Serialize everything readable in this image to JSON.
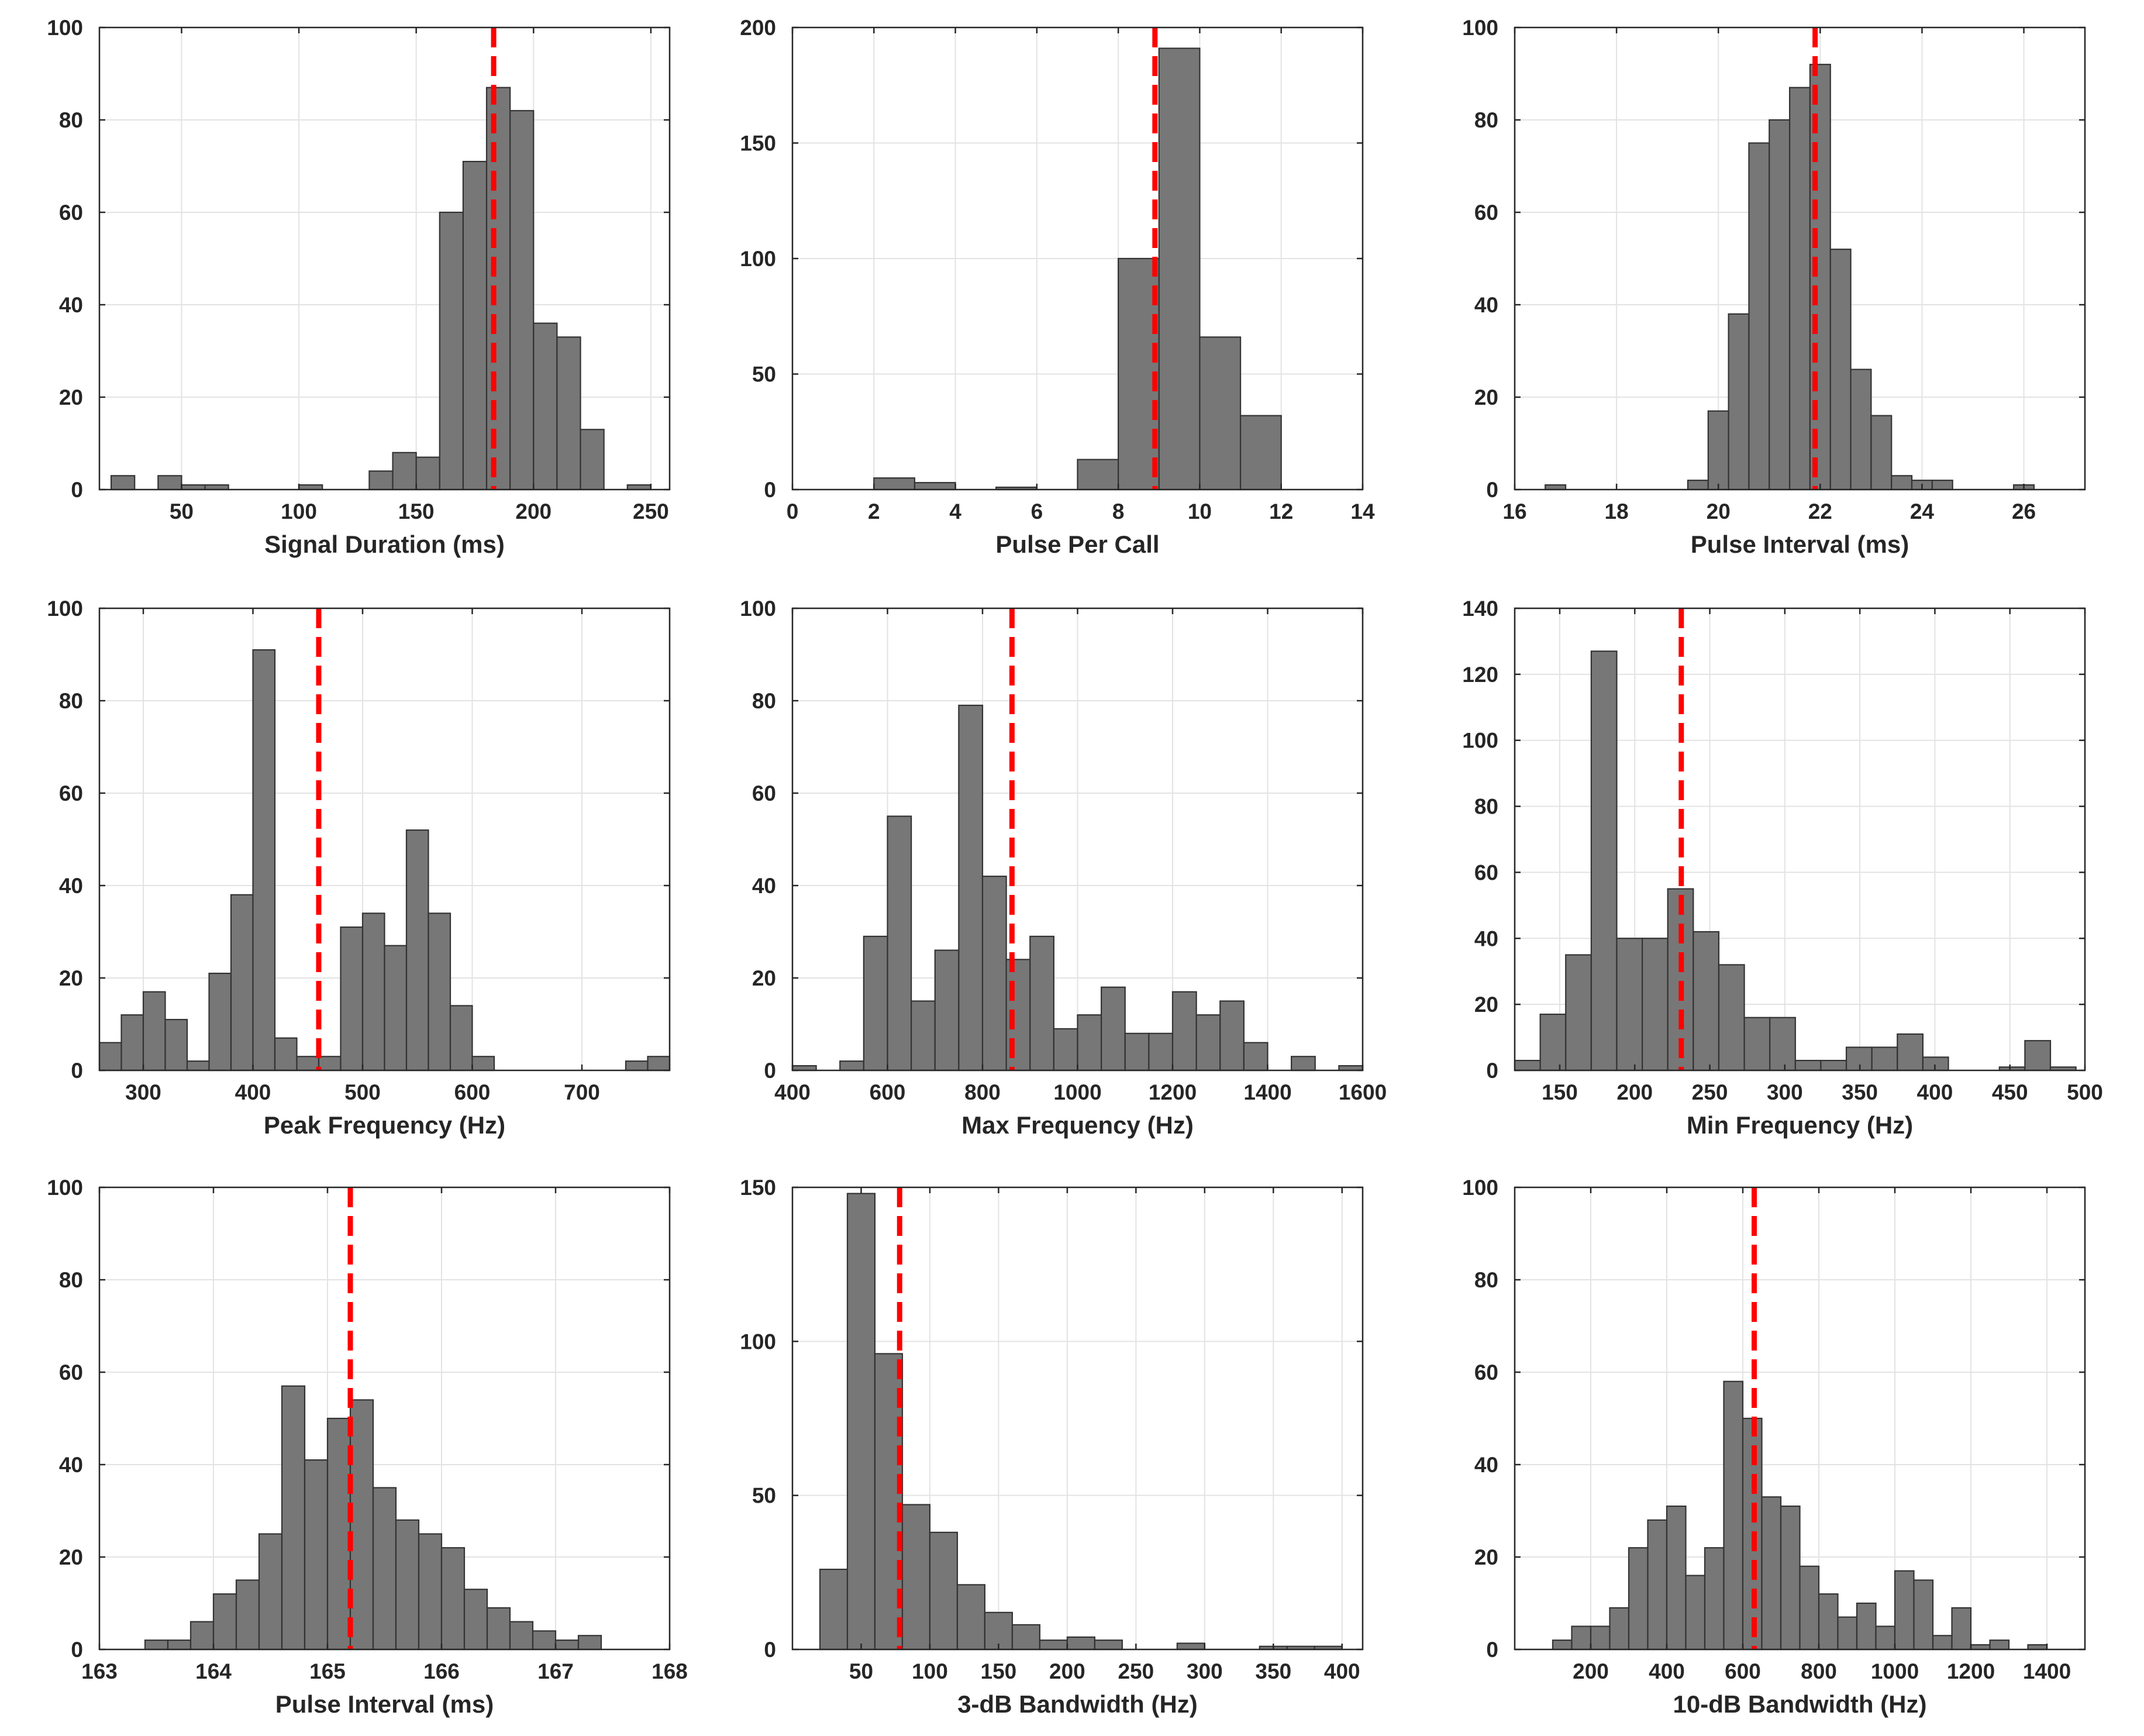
{
  "figure": {
    "bar_color": "#777777",
    "bar_edge_color": "#333333",
    "mean_line_color": "#ff0000",
    "grid_color": "#e3e3e3",
    "axis_color": "#262626"
  },
  "chart_data": [
    {
      "type": "bar",
      "title": "",
      "xlabel": "Signal Duration (ms)",
      "ylabel": "",
      "xlim": [
        15,
        258
      ],
      "ylim": [
        0,
        100
      ],
      "xticks": [
        50,
        100,
        150,
        200,
        250
      ],
      "yticks": [
        0,
        20,
        40,
        60,
        80,
        100
      ],
      "grid": true,
      "bins": [
        [
          20,
          30,
          3
        ],
        [
          40,
          50,
          3
        ],
        [
          50,
          60,
          1
        ],
        [
          60,
          70,
          1
        ],
        [
          100,
          110,
          1
        ],
        [
          130,
          140,
          4
        ],
        [
          140,
          150,
          8
        ],
        [
          150,
          160,
          7
        ],
        [
          160,
          170,
          60
        ],
        [
          170,
          180,
          71
        ],
        [
          180,
          190,
          87
        ],
        [
          190,
          200,
          82
        ],
        [
          200,
          210,
          36
        ],
        [
          210,
          220,
          33
        ],
        [
          220,
          230,
          13
        ],
        [
          240,
          250,
          1
        ]
      ],
      "mean_line": 183
    },
    {
      "type": "bar",
      "title": "",
      "xlabel": "Pulse Per Call",
      "ylabel": "",
      "xlim": [
        0,
        14
      ],
      "ylim": [
        0,
        200
      ],
      "xticks": [
        0,
        2,
        4,
        6,
        8,
        10,
        12,
        14
      ],
      "yticks": [
        0,
        50,
        100,
        150,
        200
      ],
      "grid": true,
      "bins": [
        [
          2,
          3,
          5
        ],
        [
          3,
          4,
          3
        ],
        [
          5,
          6,
          1
        ],
        [
          7,
          8,
          13
        ],
        [
          8,
          9,
          100
        ],
        [
          9,
          10,
          191
        ],
        [
          10,
          11,
          66
        ],
        [
          11,
          12,
          32
        ]
      ],
      "mean_line": 8.9
    },
    {
      "type": "bar",
      "title": "",
      "xlabel": "Pulse Interval (ms)",
      "ylabel": "",
      "xlim": [
        16,
        27.2
      ],
      "ylim": [
        0,
        100
      ],
      "xticks": [
        16,
        18,
        20,
        22,
        24,
        26
      ],
      "yticks": [
        0,
        20,
        40,
        60,
        80,
        100
      ],
      "grid": true,
      "bins": [
        [
          16.6,
          17.0,
          1
        ],
        [
          19.4,
          19.8,
          2
        ],
        [
          19.8,
          20.2,
          17
        ],
        [
          20.2,
          20.6,
          38
        ],
        [
          20.6,
          21.0,
          75
        ],
        [
          21.0,
          21.4,
          80
        ],
        [
          21.4,
          21.8,
          87
        ],
        [
          21.8,
          22.2,
          92
        ],
        [
          22.2,
          22.6,
          52
        ],
        [
          22.6,
          23.0,
          26
        ],
        [
          23.0,
          23.4,
          16
        ],
        [
          23.4,
          23.8,
          3
        ],
        [
          23.8,
          24.2,
          2
        ],
        [
          24.2,
          24.6,
          2
        ],
        [
          25.8,
          26.2,
          1
        ]
      ],
      "mean_line": 21.9
    },
    {
      "type": "bar",
      "title": "",
      "xlabel": "Peak Frequency (Hz)",
      "ylabel": "",
      "xlim": [
        260,
        780
      ],
      "ylim": [
        0,
        100
      ],
      "xticks": [
        300,
        400,
        500,
        600,
        700
      ],
      "yticks": [
        0,
        20,
        40,
        60,
        80,
        100
      ],
      "grid": true,
      "bins": [
        [
          260,
          280,
          6
        ],
        [
          280,
          300,
          12
        ],
        [
          300,
          320,
          17
        ],
        [
          320,
          340,
          11
        ],
        [
          340,
          360,
          2
        ],
        [
          360,
          380,
          21
        ],
        [
          380,
          400,
          38
        ],
        [
          400,
          420,
          91
        ],
        [
          420,
          440,
          7
        ],
        [
          440,
          460,
          3
        ],
        [
          460,
          480,
          3
        ],
        [
          480,
          500,
          31
        ],
        [
          500,
          520,
          34
        ],
        [
          520,
          540,
          27
        ],
        [
          540,
          560,
          52
        ],
        [
          560,
          580,
          34
        ],
        [
          580,
          600,
          14
        ],
        [
          600,
          620,
          3
        ],
        [
          740,
          760,
          2
        ],
        [
          760,
          780,
          3
        ]
      ],
      "mean_line": 460
    },
    {
      "type": "bar",
      "title": "",
      "xlabel": "Max Frequency (Hz)",
      "ylabel": "",
      "xlim": [
        400,
        1600
      ],
      "ylim": [
        0,
        100
      ],
      "xticks": [
        400,
        600,
        800,
        1000,
        1200,
        1400,
        1600
      ],
      "yticks": [
        0,
        20,
        40,
        60,
        80,
        100
      ],
      "grid": true,
      "bins": [
        [
          400,
          450,
          1
        ],
        [
          500,
          550,
          2
        ],
        [
          550,
          600,
          29
        ],
        [
          600,
          650,
          55
        ],
        [
          650,
          700,
          15
        ],
        [
          700,
          750,
          26
        ],
        [
          750,
          800,
          79
        ],
        [
          800,
          850,
          42
        ],
        [
          850,
          900,
          24
        ],
        [
          900,
          950,
          29
        ],
        [
          950,
          1000,
          9
        ],
        [
          1000,
          1050,
          12
        ],
        [
          1050,
          1100,
          18
        ],
        [
          1100,
          1150,
          8
        ],
        [
          1150,
          1200,
          8
        ],
        [
          1200,
          1250,
          17
        ],
        [
          1250,
          1300,
          12
        ],
        [
          1300,
          1350,
          15
        ],
        [
          1350,
          1400,
          6
        ],
        [
          1450,
          1500,
          3
        ],
        [
          1550,
          1600,
          1
        ]
      ],
      "mean_line": 862
    },
    {
      "type": "bar",
      "title": "",
      "xlabel": "Min Frequency (Hz)",
      "ylabel": "",
      "xlim": [
        120,
        500
      ],
      "ylim": [
        0,
        140
      ],
      "xticks": [
        150,
        200,
        250,
        300,
        350,
        400,
        450,
        500
      ],
      "yticks": [
        0,
        20,
        40,
        60,
        80,
        100,
        120,
        140
      ],
      "grid": true,
      "bins": [
        [
          120,
          137,
          3
        ],
        [
          137,
          154,
          17
        ],
        [
          154,
          171,
          35
        ],
        [
          171,
          188,
          127
        ],
        [
          188,
          205,
          40
        ],
        [
          205,
          222,
          40
        ],
        [
          222,
          239,
          55
        ],
        [
          239,
          256,
          42
        ],
        [
          256,
          273,
          32
        ],
        [
          273,
          290,
          16
        ],
        [
          290,
          307,
          16
        ],
        [
          307,
          324,
          3
        ],
        [
          324,
          341,
          3
        ],
        [
          341,
          358,
          7
        ],
        [
          358,
          375,
          7
        ],
        [
          375,
          392,
          11
        ],
        [
          392,
          409,
          4
        ],
        [
          426,
          443,
          0
        ],
        [
          443,
          460,
          1
        ],
        [
          460,
          477,
          9
        ],
        [
          477,
          494,
          1
        ]
      ],
      "mean_line": 231
    },
    {
      "type": "bar",
      "title": "",
      "xlabel": "Pulse Interval (ms)",
      "ylabel": "",
      "xlim": [
        163,
        168
      ],
      "ylim": [
        0,
        100
      ],
      "xticks": [
        163,
        164,
        165,
        166,
        167,
        168
      ],
      "yticks": [
        0,
        20,
        40,
        60,
        80,
        100
      ],
      "grid": true,
      "bins": [
        [
          163.4,
          163.6,
          2
        ],
        [
          163.6,
          163.8,
          2
        ],
        [
          163.8,
          164.0,
          6
        ],
        [
          164.0,
          164.2,
          12
        ],
        [
          164.2,
          164.4,
          15
        ],
        [
          164.4,
          164.6,
          25
        ],
        [
          164.6,
          164.8,
          57
        ],
        [
          164.8,
          165.0,
          41
        ],
        [
          165.0,
          165.2,
          50
        ],
        [
          165.2,
          165.4,
          54
        ],
        [
          165.4,
          165.6,
          35
        ],
        [
          165.6,
          165.8,
          28
        ],
        [
          165.8,
          166.0,
          25
        ],
        [
          166.0,
          166.2,
          22
        ],
        [
          166.2,
          166.4,
          13
        ],
        [
          166.4,
          166.6,
          9
        ],
        [
          166.6,
          166.8,
          6
        ],
        [
          166.8,
          167.0,
          4
        ],
        [
          167.0,
          167.2,
          2
        ],
        [
          167.2,
          167.4,
          3
        ]
      ],
      "mean_line": 165.2
    },
    {
      "type": "bar",
      "title": "",
      "xlabel": "3-dB Bandwidth (Hz)",
      "ylabel": "",
      "xlim": [
        0,
        415
      ],
      "ylim": [
        0,
        150
      ],
      "xticks": [
        50,
        100,
        150,
        200,
        250,
        300,
        350,
        400
      ],
      "yticks": [
        0,
        50,
        100,
        150
      ],
      "grid": true,
      "bins": [
        [
          20,
          40,
          26
        ],
        [
          40,
          60,
          148
        ],
        [
          60,
          80,
          96
        ],
        [
          80,
          100,
          47
        ],
        [
          100,
          120,
          38
        ],
        [
          120,
          140,
          21
        ],
        [
          140,
          160,
          12
        ],
        [
          160,
          180,
          8
        ],
        [
          180,
          200,
          3
        ],
        [
          200,
          220,
          4
        ],
        [
          220,
          240,
          3
        ],
        [
          280,
          300,
          2
        ],
        [
          340,
          360,
          1
        ],
        [
          360,
          380,
          1
        ],
        [
          380,
          400,
          1
        ]
      ],
      "mean_line": 78
    },
    {
      "type": "bar",
      "title": "",
      "xlabel": "10-dB Bandwidth (Hz)",
      "ylabel": "",
      "xlim": [
        0,
        1500
      ],
      "ylim": [
        0,
        100
      ],
      "xticks": [
        200,
        400,
        600,
        800,
        1000,
        1200,
        1400
      ],
      "yticks": [
        0,
        20,
        40,
        60,
        80,
        100
      ],
      "grid": true,
      "bins": [
        [
          100,
          150,
          2
        ],
        [
          150,
          200,
          5
        ],
        [
          200,
          250,
          5
        ],
        [
          250,
          300,
          9
        ],
        [
          300,
          350,
          22
        ],
        [
          350,
          400,
          28
        ],
        [
          400,
          450,
          31
        ],
        [
          450,
          500,
          16
        ],
        [
          500,
          550,
          22
        ],
        [
          550,
          600,
          58
        ],
        [
          600,
          650,
          50
        ],
        [
          650,
          700,
          33
        ],
        [
          700,
          750,
          31
        ],
        [
          750,
          800,
          18
        ],
        [
          800,
          850,
          12
        ],
        [
          850,
          900,
          7
        ],
        [
          900,
          950,
          10
        ],
        [
          950,
          1000,
          5
        ],
        [
          1000,
          1050,
          17
        ],
        [
          1050,
          1100,
          15
        ],
        [
          1100,
          1150,
          3
        ],
        [
          1150,
          1200,
          9
        ],
        [
          1200,
          1250,
          1
        ],
        [
          1250,
          1300,
          2
        ],
        [
          1350,
          1400,
          1
        ]
      ],
      "mean_line": 630
    }
  ]
}
